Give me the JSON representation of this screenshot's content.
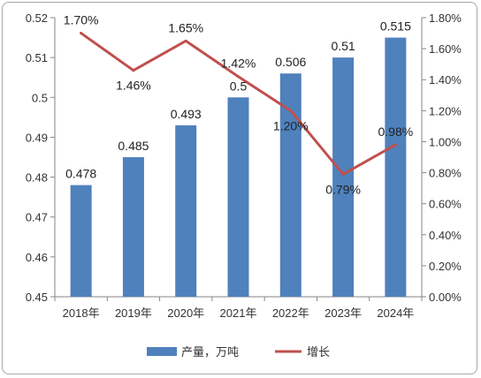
{
  "chart_data": {
    "type": "bar",
    "categories": [
      "2018年",
      "2019年",
      "2020年",
      "2021年",
      "2022年",
      "2023年",
      "2024年"
    ],
    "series": [
      {
        "name": "产量，万吨",
        "type": "bar",
        "axis": "left",
        "values": [
          0.478,
          0.485,
          0.493,
          0.5,
          0.506,
          0.51,
          0.515
        ],
        "labels": [
          "0.478",
          "0.485",
          "0.493",
          "0.5",
          "0.506",
          "0.51",
          "0.515"
        ],
        "color": "#4f81bd"
      },
      {
        "name": "增长",
        "type": "line",
        "axis": "right",
        "values": [
          1.7,
          1.46,
          1.65,
          1.42,
          1.2,
          0.79,
          0.98
        ],
        "labels": [
          "1.70%",
          "1.46%",
          "1.65%",
          "1.42%",
          "1.20%",
          "0.79%",
          "0.98%"
        ],
        "color": "#c0504d"
      }
    ],
    "y_left": {
      "ylim": [
        0.45,
        0.52
      ],
      "ticks": [
        "0.45",
        "0.46",
        "0.47",
        "0.48",
        "0.49",
        "0.5",
        "0.51",
        "0.52"
      ]
    },
    "y_right": {
      "ylim": [
        0,
        1.8
      ],
      "ticks": [
        "0.00%",
        "0.20%",
        "0.40%",
        "0.60%",
        "0.80%",
        "1.00%",
        "1.20%",
        "1.40%",
        "1.60%",
        "1.80%"
      ]
    },
    "grid": false,
    "legend_position": "bottom"
  }
}
